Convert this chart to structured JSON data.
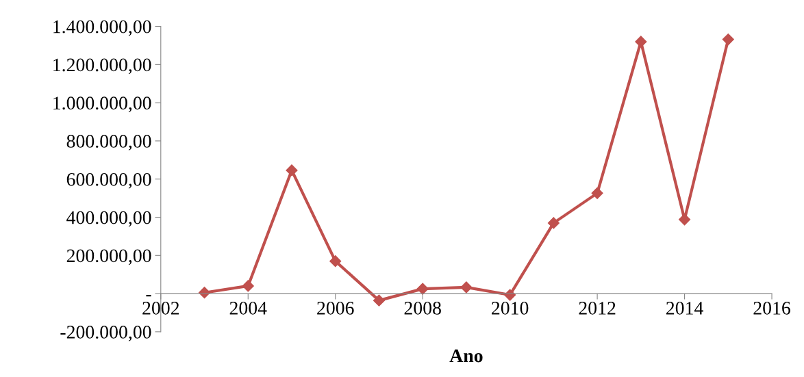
{
  "chart_data": {
    "type": "line",
    "xlabel": "Ano",
    "x": [
      2003,
      2004,
      2005,
      2006,
      2007,
      2008,
      2009,
      2010,
      2011,
      2012,
      2013,
      2014,
      2015
    ],
    "series": [
      {
        "color": "#c0504d",
        "values": [
          5000,
          40000,
          646000,
          170000,
          -36000,
          25000,
          33000,
          -7000,
          370000,
          526000,
          1320000,
          388000,
          1332000
        ]
      }
    ],
    "xlim": [
      2002,
      2016
    ],
    "xticks": [
      2002,
      2004,
      2006,
      2008,
      2010,
      2012,
      2014,
      2016
    ],
    "ylim": [
      -200000,
      1400000
    ],
    "yticks": [
      {
        "value": -200000,
        "label": "-200.000,00"
      },
      {
        "value": 0,
        "label": "-"
      },
      {
        "value": 200000,
        "label": "200.000,00"
      },
      {
        "value": 400000,
        "label": "400.000,00"
      },
      {
        "value": 600000,
        "label": "600.000,00"
      },
      {
        "value": 800000,
        "label": "800.000,00"
      },
      {
        "value": 1000000,
        "label": "1.000.000,00"
      },
      {
        "value": 1200000,
        "label": "1.200.000,00"
      },
      {
        "value": 1400000,
        "label": "1.400.000,00"
      }
    ],
    "marker": "diamond",
    "line_style": "solid",
    "grid": false,
    "legend": false
  }
}
